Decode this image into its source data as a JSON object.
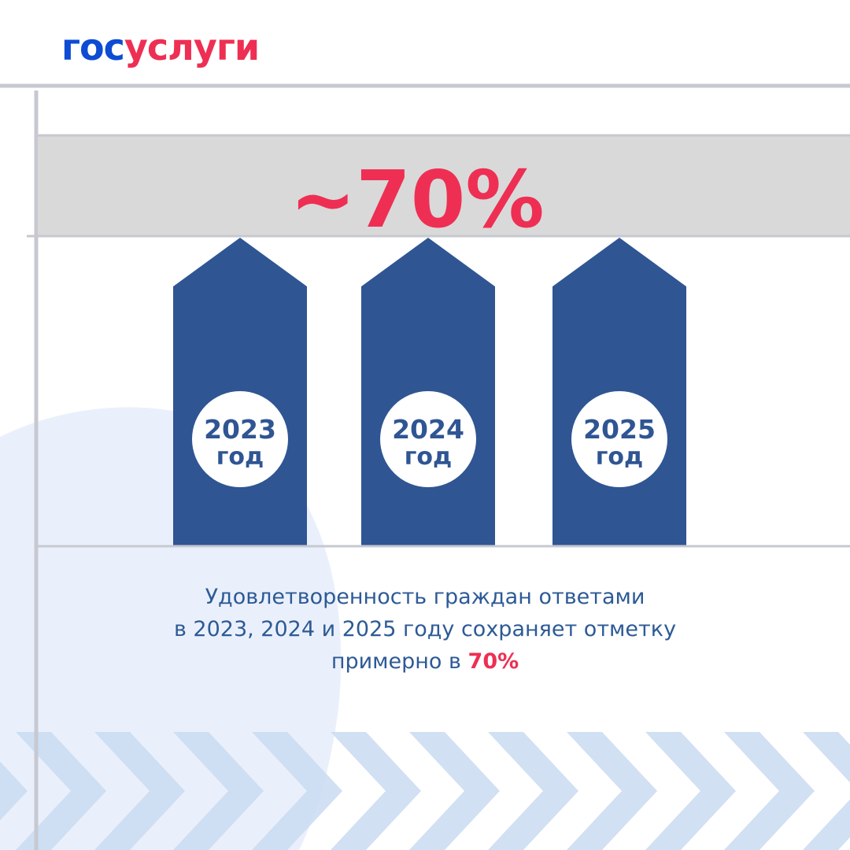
{
  "brand": {
    "logo_part_1": "гос",
    "logo_part_2": "услуги",
    "colors": {
      "blue": "#0d4cd3",
      "red": "#ee2f53"
    }
  },
  "chart_data": {
    "type": "bar",
    "categories": [
      "2023 год",
      "2024 год",
      "2025 год"
    ],
    "category_year": [
      "2023",
      "2024",
      "2025"
    ],
    "category_unit": [
      "год",
      "год",
      "год"
    ],
    "values": [
      70,
      70,
      70
    ],
    "ylim": [
      0,
      100
    ],
    "grid": false,
    "annotation": "~70%",
    "bar_color": "#2f5593",
    "annotation_color": "#ee2f53",
    "band_color": "#d9d9d9"
  },
  "caption": {
    "line_1": "Удовлетворенность граждан ответами",
    "line_2": "в 2023, 2024 и 2025 году сохраняет отметку",
    "line_3_text": "примерно в ",
    "line_3_accent": "70%"
  },
  "decor": {
    "chevron_color": "#c9daf1",
    "blob_color": "#eaf0fb",
    "frame_color": "#c7c9d1"
  }
}
